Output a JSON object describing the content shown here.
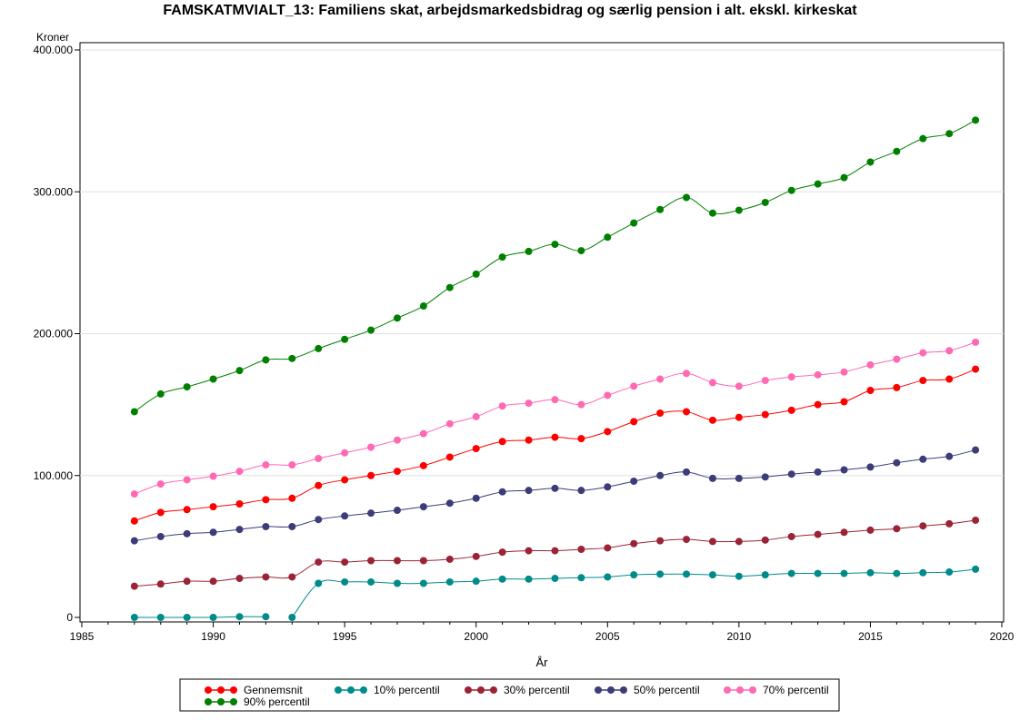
{
  "chart_data": {
    "type": "line",
    "title": "FAMSKATMVIALT_13: Familiens skat, arbejdsmarkedsbidrag og særlig pension i alt. ekskl. kirkeskat",
    "xlabel": "År",
    "ylabel": "Kroner",
    "xlim": [
      1985,
      2020
    ],
    "ylim": [
      0,
      400000
    ],
    "x_ticks": [
      1985,
      1990,
      1995,
      2000,
      2005,
      2010,
      2015,
      2020
    ],
    "y_ticks": [
      0,
      100000,
      200000,
      300000,
      400000
    ],
    "y_tick_labels": [
      "0",
      "100.000",
      "200.000",
      "300.000",
      "400.000"
    ],
    "grid": "horizontal",
    "legend_position": "bottom",
    "series": [
      {
        "name": "Gennemsnit",
        "color": "#ff0000",
        "x": [
          1987,
          1988,
          1989,
          1990,
          1991,
          1992,
          1993,
          1994,
          1995,
          1996,
          1997,
          1998,
          1999,
          2000,
          2001,
          2002,
          2003,
          2004,
          2005,
          2006,
          2007,
          2008,
          2009,
          2010,
          2011,
          2012,
          2013,
          2014,
          2015,
          2016,
          2017,
          2018,
          2019
        ],
        "values": [
          68000,
          74000,
          76000,
          78000,
          80000,
          83000,
          84000,
          93000,
          97000,
          100000,
          103000,
          107000,
          113000,
          119000,
          124000,
          125000,
          127000,
          126000,
          131000,
          138000,
          144000,
          145000,
          139000,
          141000,
          143000,
          146000,
          150000,
          152000,
          160000,
          162000,
          167000,
          168000,
          175000
        ]
      },
      {
        "name": "10% percentil",
        "color": "#008b8b",
        "x": [
          1987,
          1988,
          1989,
          1990,
          1991,
          1992,
          1993,
          1994,
          1995,
          1996,
          1997,
          1998,
          1999,
          2000,
          2001,
          2002,
          2003,
          2004,
          2005,
          2006,
          2007,
          2008,
          2009,
          2010,
          2011,
          2012,
          2013,
          2014,
          2015,
          2016,
          2017,
          2018,
          2019
        ],
        "values": [
          0,
          0,
          0,
          0,
          500,
          500,
          0,
          24000,
          25000,
          25000,
          24000,
          24000,
          25000,
          25500,
          27000,
          27000,
          27500,
          28000,
          28500,
          30000,
          30500,
          30500,
          30000,
          29000,
          30000,
          31000,
          31000,
          31000,
          31500,
          31000,
          31500,
          32000,
          34000
        ]
      },
      {
        "name": "30% percentil",
        "color": "#9b2335",
        "x": [
          1987,
          1988,
          1989,
          1990,
          1991,
          1992,
          1993,
          1994,
          1995,
          1996,
          1997,
          1998,
          1999,
          2000,
          2001,
          2002,
          2003,
          2004,
          2005,
          2006,
          2007,
          2008,
          2009,
          2010,
          2011,
          2012,
          2013,
          2014,
          2015,
          2016,
          2017,
          2018,
          2019
        ],
        "values": [
          22000,
          23500,
          25500,
          25500,
          27500,
          28500,
          28500,
          39000,
          39000,
          40000,
          40000,
          40000,
          41000,
          43000,
          46000,
          47000,
          47000,
          48000,
          49000,
          52000,
          54000,
          55000,
          53500,
          53500,
          54500,
          57000,
          58500,
          60000,
          61500,
          62500,
          64500,
          66000,
          68500
        ]
      },
      {
        "name": "50% percentil",
        "color": "#3c3c78",
        "x": [
          1987,
          1988,
          1989,
          1990,
          1991,
          1992,
          1993,
          1994,
          1995,
          1996,
          1997,
          1998,
          1999,
          2000,
          2001,
          2002,
          2003,
          2004,
          2005,
          2006,
          2007,
          2008,
          2009,
          2010,
          2011,
          2012,
          2013,
          2014,
          2015,
          2016,
          2017,
          2018,
          2019
        ],
        "values": [
          54000,
          57000,
          59000,
          60000,
          62000,
          64000,
          64000,
          69000,
          71500,
          73500,
          75500,
          78000,
          80500,
          84000,
          88500,
          89500,
          91000,
          89500,
          92000,
          96000,
          100000,
          102500,
          98000,
          98000,
          99000,
          101000,
          102500,
          104000,
          106000,
          109000,
          111500,
          113500,
          118000
        ]
      },
      {
        "name": "70% percentil",
        "color": "#ff69b4",
        "x": [
          1987,
          1988,
          1989,
          1990,
          1991,
          1992,
          1993,
          1994,
          1995,
          1996,
          1997,
          1998,
          1999,
          2000,
          2001,
          2002,
          2003,
          2004,
          2005,
          2006,
          2007,
          2008,
          2009,
          2010,
          2011,
          2012,
          2013,
          2014,
          2015,
          2016,
          2017,
          2018,
          2019
        ],
        "values": [
          87000,
          94000,
          97000,
          99500,
          103000,
          107500,
          107500,
          112000,
          116000,
          120000,
          125000,
          129500,
          136500,
          141500,
          149000,
          151000,
          153500,
          150000,
          156500,
          163000,
          168000,
          172000,
          165500,
          163000,
          167000,
          169500,
          171000,
          173000,
          178000,
          182000,
          186500,
          188000,
          194000
        ]
      },
      {
        "name": "90% percentil",
        "color": "#008000",
        "x": [
          1987,
          1988,
          1989,
          1990,
          1991,
          1992,
          1993,
          1994,
          1995,
          1996,
          1997,
          1998,
          1999,
          2000,
          2001,
          2002,
          2003,
          2004,
          2005,
          2006,
          2007,
          2008,
          2009,
          2010,
          2011,
          2012,
          2013,
          2014,
          2015,
          2016,
          2017,
          2018,
          2019
        ],
        "values": [
          145000,
          157500,
          162500,
          168000,
          174000,
          181500,
          182500,
          189500,
          196000,
          202500,
          211000,
          219500,
          232500,
          242000,
          254000,
          258000,
          263000,
          258500,
          268000,
          278000,
          287500,
          296000,
          285000,
          287000,
          292500,
          301000,
          305500,
          310000,
          321000,
          328500,
          337500,
          341000,
          350500
        ]
      }
    ]
  }
}
